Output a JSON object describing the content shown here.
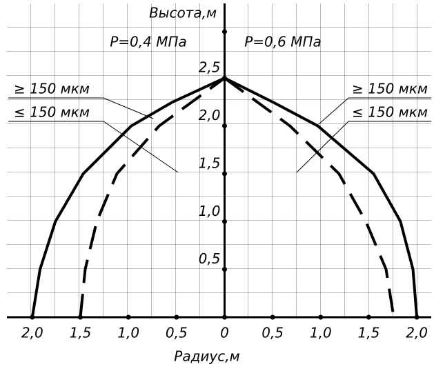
{
  "chart_data": {
    "type": "line",
    "y_label": "Высота,м",
    "x_label": "Радиус,м",
    "annotations": [
      "P=0,4 МПа",
      "P=0,6 МПа"
    ],
    "xlim": [
      -2.25,
      2.15
    ],
    "ylim": [
      0,
      3.28
    ],
    "xticks": [
      {
        "value": -2,
        "label": "2,0"
      },
      {
        "value": -1.5,
        "label": "1,5"
      },
      {
        "value": -1,
        "label": "1,0"
      },
      {
        "value": -0.5,
        "label": "0,5"
      },
      0,
      {
        "value": 0.5,
        "label": "0,5"
      },
      {
        "value": 1,
        "label": "1,0"
      },
      {
        "value": 1.5,
        "label": "1,5"
      },
      {
        "value": 2,
        "label": "2,0"
      }
    ],
    "yticks": [
      {
        "value": 0.5,
        "label": "0,5"
      },
      {
        "value": 1,
        "label": "1,0"
      },
      {
        "value": 1.5,
        "label": "1,5"
      },
      {
        "value": 2,
        "label": "2,0"
      },
      {
        "value": 2.5,
        "label": "2,5"
      }
    ],
    "series": [
      {
        "name": "≥ 150 мкм",
        "color": "#000000",
        "style": "solid",
        "x": [
          -2,
          -1.92,
          -1.76,
          -1.47,
          -0.97,
          -0.54,
          0
        ],
        "values": [
          0,
          0.5,
          1,
          1.5,
          2,
          2.25,
          2.5
        ]
      },
      {
        "name": "≤ 150 мкм",
        "color": "#000000",
        "style": "dashed",
        "x": [
          -1.5,
          -1.45,
          -1.33,
          -1.12,
          -0.68,
          0
        ],
        "values": [
          0,
          0.5,
          1,
          1.5,
          2,
          2.5
        ]
      },
      {
        "name": "≥ 150 мкм",
        "color": "#000000",
        "style": "solid",
        "x": [
          0,
          0.5,
          0.97,
          1.55,
          1.83,
          1.96,
          2
        ],
        "values": [
          2.5,
          2.25,
          2,
          1.5,
          1,
          0.5,
          0
        ]
      },
      {
        "name": "≤ 150 мкм",
        "color": "#000000",
        "style": "dashed",
        "x": [
          0,
          0.68,
          1.19,
          1.47,
          1.68,
          1.76
        ],
        "values": [
          2.5,
          2,
          1.5,
          1,
          0.5,
          0
        ]
      }
    ]
  }
}
